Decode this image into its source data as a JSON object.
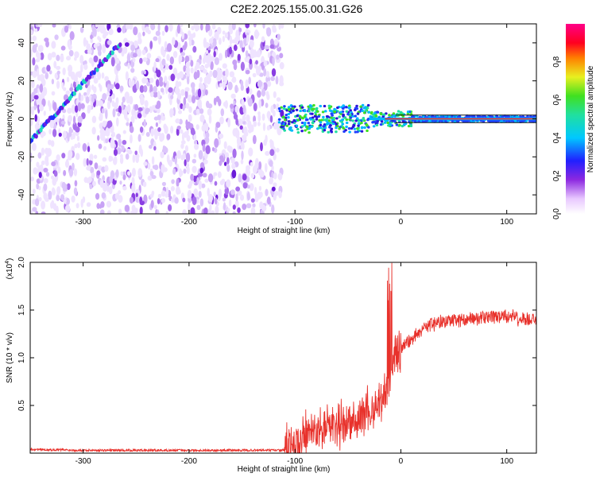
{
  "title": "C2E2.2025.155.00.31.G26",
  "colors": {
    "snr_line": "#e8312b",
    "axis": "#000000",
    "background": "#ffffff"
  },
  "chart_data": [
    {
      "type": "heatmap",
      "title": "C2E2.2025.155.00.31.G26",
      "xlabel": "Height of straight line (km)",
      "ylabel": "Frequency (Hz)",
      "xlim": [
        -350,
        128
      ],
      "ylim": [
        -50,
        50
      ],
      "x_ticks": [
        -300,
        -200,
        -100,
        0,
        100
      ],
      "y_ticks": [
        -40,
        -20,
        0,
        20,
        40
      ],
      "colorbar": {
        "label": "Normalized spectral amplitude",
        "range": [
          0,
          1
        ],
        "ticks": [
          0.0,
          0.2,
          0.4,
          0.6,
          0.8
        ],
        "colormap": "white-purple-blue-cyan-green-yellow-red-magenta"
      },
      "features": [
        {
          "name": "diagonal streak",
          "x_range": [
            -350,
            -265
          ],
          "y_range": [
            -12,
            40
          ]
        },
        {
          "name": "noise region",
          "x_range": [
            -350,
            -112
          ],
          "y_range": [
            -50,
            50
          ]
        },
        {
          "name": "signal band",
          "x_range": [
            -115,
            128
          ],
          "y_center": 0,
          "half_width": 4
        }
      ]
    },
    {
      "type": "line",
      "title": "",
      "xlabel": "Height of straight line (km)",
      "ylabel": "SNR (10 * v/v)",
      "y_multiplier": "(x10",
      "y_multiplier_exp": "4",
      "xlim": [
        -350,
        128
      ],
      "ylim": [
        0,
        2.0
      ],
      "x_ticks": [
        -300,
        -200,
        -100,
        0,
        100
      ],
      "y_ticks": [
        "0.5",
        "1.0",
        "1.5",
        "2.0"
      ],
      "y_tick_values": [
        0.5,
        1.0,
        1.5,
        2.0
      ],
      "series": [
        {
          "x": [
            -350,
            -300,
            -250,
            -200,
            -150,
            -110,
            -90,
            -70,
            -50,
            -30,
            -20,
            -10,
            -5,
            0,
            10,
            25,
            40,
            60,
            80,
            100,
            128
          ],
          "y": [
            0.04,
            0.03,
            0.03,
            0.03,
            0.03,
            0.03,
            0.18,
            0.28,
            0.3,
            0.45,
            0.55,
            0.75,
            1.05,
            1.1,
            1.2,
            1.34,
            1.38,
            1.4,
            1.42,
            1.43,
            1.39
          ]
        }
      ]
    }
  ]
}
